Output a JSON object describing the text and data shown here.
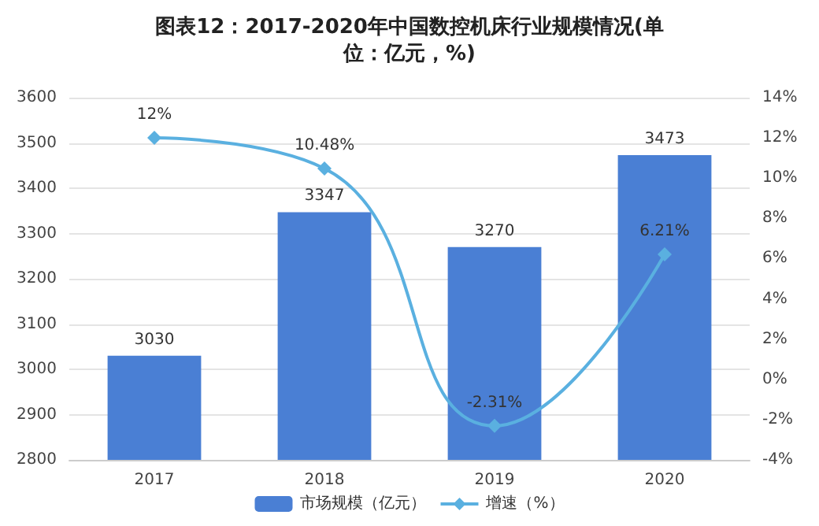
{
  "chart_data": {
    "type": "bar",
    "title": "图表12：2017-2020年中国数控机床行业规模情况(单位：亿元，%)",
    "categories": [
      "2017",
      "2018",
      "2019",
      "2020"
    ],
    "series": [
      {
        "name": "市场规模（亿元）",
        "color": "#4a7fd4",
        "values": [
          3030,
          3347,
          3270,
          3473
        ],
        "value_labels": [
          "3030",
          "3347",
          "3270",
          "3473"
        ]
      },
      {
        "name": "增速（%）",
        "type": "line",
        "axis": "y2",
        "color": "#5ab0e0",
        "marker": "diamond",
        "values": [
          12,
          10.48,
          -2.31,
          6.21
        ],
        "value_labels": [
          "12%",
          "10.48%",
          "-2.31%",
          "6.21%"
        ]
      }
    ],
    "ylim": [
      2800,
      3600
    ],
    "yticks": [
      2800,
      2900,
      3000,
      3100,
      3200,
      3300,
      3400,
      3500,
      3600
    ],
    "y2lim": [
      -4,
      14
    ],
    "y2ticks": [
      {
        "value": -4,
        "label": "-4%"
      },
      {
        "value": -2,
        "label": "-2%"
      },
      {
        "value": 0,
        "label": "0%"
      },
      {
        "value": 2,
        "label": "2%"
      },
      {
        "value": 4,
        "label": "4%"
      },
      {
        "value": 6,
        "label": "6%"
      },
      {
        "value": 8,
        "label": "8%"
      },
      {
        "value": 10,
        "label": "10%"
      },
      {
        "value": 12,
        "label": "12%"
      },
      {
        "value": 14,
        "label": "14%"
      }
    ],
    "grid": "y",
    "legend": "bottom"
  }
}
